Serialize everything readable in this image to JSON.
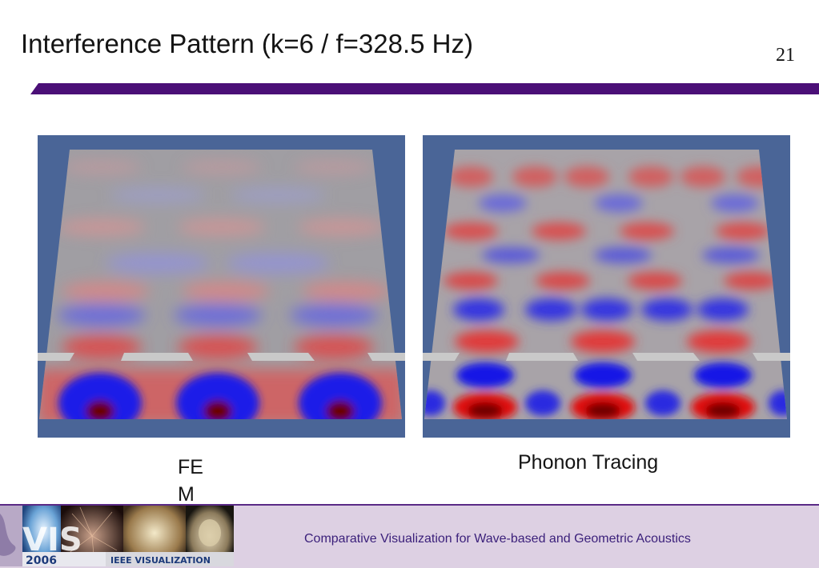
{
  "slide": {
    "title": "Interference Pattern (k=6 / f=328.5 Hz)",
    "page_number": "21"
  },
  "captions": {
    "fem": "FEM",
    "phonon": "Phonon Tracing"
  },
  "footer": {
    "text": "Comparative Visualization for Wave-based and Geometric Acoustics",
    "logo_year": "2006",
    "logo_text": "IEEE VISUALIZATION",
    "logo_mark": "VIS"
  },
  "colors": {
    "title_bar": "#4b0f77",
    "panel_background": "#4a6597",
    "footer_background": "#ddd0e3",
    "footer_text": "#3a1f7a"
  }
}
